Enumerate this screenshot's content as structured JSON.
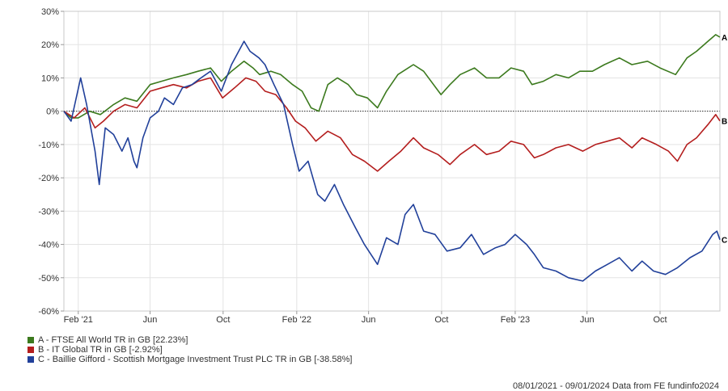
{
  "chart_data": {
    "type": "line",
    "y_tick_labels": [
      "30%",
      "20%",
      "10%",
      "0%",
      "-10%",
      "-20%",
      "-30%",
      "-40%",
      "-50%",
      "-60%"
    ],
    "y_ticks": [
      30,
      20,
      10,
      0,
      -10,
      -20,
      -30,
      -40,
      -50,
      -60
    ],
    "ylim": [
      -60,
      30
    ],
    "x_range": [
      "2021-01-08",
      "2024-01-09"
    ],
    "x_tick_labels": [
      "Feb '21",
      "Jun",
      "Oct",
      "Feb '22",
      "Jun",
      "Oct",
      "Feb '23",
      "Jun",
      "Oct"
    ],
    "x_ticks": [
      "2021-02-01",
      "2021-06-01",
      "2021-10-01",
      "2022-02-01",
      "2022-06-01",
      "2022-10-01",
      "2023-02-01",
      "2023-06-01",
      "2023-10-01"
    ],
    "grid": true,
    "zero_line": true,
    "legend_placement": "bottom-left",
    "series": [
      {
        "name": "A - FTSE All World TR in GB [22.23%]",
        "end_label": "A",
        "color": "#3c7a1e",
        "points": [
          [
            "2021-01-08",
            0
          ],
          [
            "2021-01-20",
            -2
          ],
          [
            "2021-02-01",
            -2
          ],
          [
            "2021-02-20",
            0
          ],
          [
            "2021-03-10",
            -1
          ],
          [
            "2021-04-01",
            2
          ],
          [
            "2021-04-20",
            4
          ],
          [
            "2021-05-10",
            3
          ],
          [
            "2021-06-01",
            8
          ],
          [
            "2021-06-20",
            9
          ],
          [
            "2021-07-10",
            10
          ],
          [
            "2021-08-01",
            11
          ],
          [
            "2021-08-20",
            12
          ],
          [
            "2021-09-10",
            13
          ],
          [
            "2021-09-28",
            9
          ],
          [
            "2021-10-15",
            12
          ],
          [
            "2021-11-05",
            15
          ],
          [
            "2021-11-20",
            13
          ],
          [
            "2021-12-01",
            11
          ],
          [
            "2021-12-20",
            12
          ],
          [
            "2022-01-05",
            11
          ],
          [
            "2022-01-25",
            8
          ],
          [
            "2022-02-10",
            6
          ],
          [
            "2022-02-25",
            1
          ],
          [
            "2022-03-10",
            0
          ],
          [
            "2022-03-25",
            8
          ],
          [
            "2022-04-10",
            10
          ],
          [
            "2022-04-28",
            8
          ],
          [
            "2022-05-12",
            5
          ],
          [
            "2022-05-30",
            4
          ],
          [
            "2022-06-16",
            1
          ],
          [
            "2022-07-01",
            6
          ],
          [
            "2022-07-20",
            11
          ],
          [
            "2022-08-15",
            14
          ],
          [
            "2022-09-01",
            12
          ],
          [
            "2022-09-30",
            5
          ],
          [
            "2022-10-15",
            8
          ],
          [
            "2022-11-01",
            11
          ],
          [
            "2022-11-25",
            13
          ],
          [
            "2022-12-15",
            10
          ],
          [
            "2023-01-05",
            10
          ],
          [
            "2023-01-25",
            13
          ],
          [
            "2023-02-15",
            12
          ],
          [
            "2023-03-01",
            8
          ],
          [
            "2023-03-20",
            9
          ],
          [
            "2023-04-10",
            11
          ],
          [
            "2023-05-01",
            10
          ],
          [
            "2023-05-20",
            12
          ],
          [
            "2023-06-10",
            12
          ],
          [
            "2023-06-30",
            14
          ],
          [
            "2023-07-25",
            16
          ],
          [
            "2023-08-15",
            14
          ],
          [
            "2023-09-10",
            15
          ],
          [
            "2023-10-01",
            13
          ],
          [
            "2023-10-27",
            11
          ],
          [
            "2023-11-15",
            16
          ],
          [
            "2023-12-01",
            18
          ],
          [
            "2023-12-20",
            21
          ],
          [
            "2024-01-02",
            23
          ],
          [
            "2024-01-09",
            22.23
          ]
        ]
      },
      {
        "name": "B - IT Global TR in GB [-2.92%]",
        "end_label": "B",
        "color": "#b41e1e",
        "points": [
          [
            "2021-01-08",
            0
          ],
          [
            "2021-01-25",
            -2
          ],
          [
            "2021-02-12",
            1
          ],
          [
            "2021-03-01",
            -5
          ],
          [
            "2021-03-15",
            -3
          ],
          [
            "2021-04-01",
            0
          ],
          [
            "2021-04-20",
            2
          ],
          [
            "2021-05-10",
            1
          ],
          [
            "2021-06-01",
            6
          ],
          [
            "2021-06-20",
            7
          ],
          [
            "2021-07-10",
            8
          ],
          [
            "2021-08-01",
            7
          ],
          [
            "2021-08-20",
            9
          ],
          [
            "2021-09-10",
            10
          ],
          [
            "2021-09-30",
            4
          ],
          [
            "2021-10-20",
            7
          ],
          [
            "2021-11-08",
            10
          ],
          [
            "2021-11-25",
            9
          ],
          [
            "2021-12-10",
            6
          ],
          [
            "2021-12-28",
            5
          ],
          [
            "2022-01-15",
            1
          ],
          [
            "2022-01-30",
            -3
          ],
          [
            "2022-02-15",
            -5
          ],
          [
            "2022-03-05",
            -9
          ],
          [
            "2022-03-25",
            -6
          ],
          [
            "2022-04-15",
            -8
          ],
          [
            "2022-05-05",
            -13
          ],
          [
            "2022-05-25",
            -15
          ],
          [
            "2022-06-16",
            -18
          ],
          [
            "2022-07-05",
            -15
          ],
          [
            "2022-07-25",
            -12
          ],
          [
            "2022-08-15",
            -8
          ],
          [
            "2022-09-01",
            -11
          ],
          [
            "2022-09-25",
            -13
          ],
          [
            "2022-10-15",
            -16
          ],
          [
            "2022-11-01",
            -13
          ],
          [
            "2022-11-25",
            -10
          ],
          [
            "2022-12-15",
            -13
          ],
          [
            "2023-01-05",
            -12
          ],
          [
            "2023-01-25",
            -9
          ],
          [
            "2023-02-15",
            -10
          ],
          [
            "2023-03-05",
            -14
          ],
          [
            "2023-03-20",
            -13
          ],
          [
            "2023-04-10",
            -11
          ],
          [
            "2023-05-01",
            -10
          ],
          [
            "2023-05-25",
            -12
          ],
          [
            "2023-06-15",
            -10
          ],
          [
            "2023-07-05",
            -9
          ],
          [
            "2023-07-25",
            -8
          ],
          [
            "2023-08-15",
            -11
          ],
          [
            "2023-09-01",
            -8
          ],
          [
            "2023-09-25",
            -10
          ],
          [
            "2023-10-15",
            -12
          ],
          [
            "2023-10-30",
            -15
          ],
          [
            "2023-11-15",
            -10
          ],
          [
            "2023-12-01",
            -8
          ],
          [
            "2023-12-20",
            -4
          ],
          [
            "2024-01-02",
            -1
          ],
          [
            "2024-01-09",
            -2.92
          ]
        ]
      },
      {
        "name": "C - Baillie Gifford - Scottish Mortgage Investment Trust PLC TR in GB [-38.58%]",
        "end_label": "C",
        "color": "#21409a",
        "points": [
          [
            "2021-01-08",
            0
          ],
          [
            "2021-01-20",
            -3
          ],
          [
            "2021-02-05",
            10
          ],
          [
            "2021-02-15",
            2
          ],
          [
            "2021-03-01",
            -12
          ],
          [
            "2021-03-08",
            -22
          ],
          [
            "2021-03-18",
            -5
          ],
          [
            "2021-04-01",
            -7
          ],
          [
            "2021-04-15",
            -12
          ],
          [
            "2021-04-25",
            -8
          ],
          [
            "2021-05-05",
            -15
          ],
          [
            "2021-05-10",
            -17
          ],
          [
            "2021-05-20",
            -8
          ],
          [
            "2021-06-01",
            -2
          ],
          [
            "2021-06-15",
            0
          ],
          [
            "2021-06-25",
            4
          ],
          [
            "2021-07-10",
            2
          ],
          [
            "2021-07-25",
            7
          ],
          [
            "2021-08-10",
            8
          ],
          [
            "2021-08-25",
            10
          ],
          [
            "2021-09-10",
            12
          ],
          [
            "2021-09-28",
            6
          ],
          [
            "2021-10-15",
            14
          ],
          [
            "2021-11-05",
            21
          ],
          [
            "2021-11-15",
            18
          ],
          [
            "2021-11-30",
            16
          ],
          [
            "2021-12-10",
            14
          ],
          [
            "2021-12-25",
            8
          ],
          [
            "2022-01-10",
            2
          ],
          [
            "2022-01-25",
            -10
          ],
          [
            "2022-02-05",
            -18
          ],
          [
            "2022-02-20",
            -15
          ],
          [
            "2022-03-08",
            -25
          ],
          [
            "2022-03-20",
            -27
          ],
          [
            "2022-04-05",
            -22
          ],
          [
            "2022-04-20",
            -28
          ],
          [
            "2022-05-10",
            -35
          ],
          [
            "2022-05-25",
            -40
          ],
          [
            "2022-06-16",
            -46
          ],
          [
            "2022-07-01",
            -38
          ],
          [
            "2022-07-20",
            -40
          ],
          [
            "2022-08-01",
            -31
          ],
          [
            "2022-08-15",
            -28
          ],
          [
            "2022-09-01",
            -36
          ],
          [
            "2022-09-20",
            -37
          ],
          [
            "2022-10-10",
            -42
          ],
          [
            "2022-11-01",
            -41
          ],
          [
            "2022-11-20",
            -37
          ],
          [
            "2022-12-10",
            -43
          ],
          [
            "2022-12-30",
            -41
          ],
          [
            "2023-01-15",
            -40
          ],
          [
            "2023-02-01",
            -37
          ],
          [
            "2023-02-20",
            -40
          ],
          [
            "2023-03-05",
            -43
          ],
          [
            "2023-03-20",
            -47
          ],
          [
            "2023-04-10",
            -48
          ],
          [
            "2023-05-01",
            -50
          ],
          [
            "2023-05-25",
            -51
          ],
          [
            "2023-06-15",
            -48
          ],
          [
            "2023-07-05",
            -46
          ],
          [
            "2023-07-25",
            -44
          ],
          [
            "2023-08-15",
            -48
          ],
          [
            "2023-09-01",
            -45
          ],
          [
            "2023-09-20",
            -48
          ],
          [
            "2023-10-10",
            -49
          ],
          [
            "2023-10-30",
            -47
          ],
          [
            "2023-11-20",
            -44
          ],
          [
            "2023-12-10",
            -42
          ],
          [
            "2023-12-28",
            -37
          ],
          [
            "2024-01-04",
            -36
          ],
          [
            "2024-01-09",
            -38.58
          ]
        ]
      }
    ]
  },
  "legend": [
    {
      "label": "A - FTSE All World TR in GB [22.23%]",
      "color": "#3c7a1e"
    },
    {
      "label": "B - IT Global TR in GB [-2.92%]",
      "color": "#b41e1e"
    },
    {
      "label": "C - Baillie Gifford - Scottish Mortgage Investment Trust PLC TR in GB [-38.58%]",
      "color": "#21409a"
    }
  ],
  "footer_text": "08/01/2021 - 09/01/2024 Data from FE fundinfo2024"
}
